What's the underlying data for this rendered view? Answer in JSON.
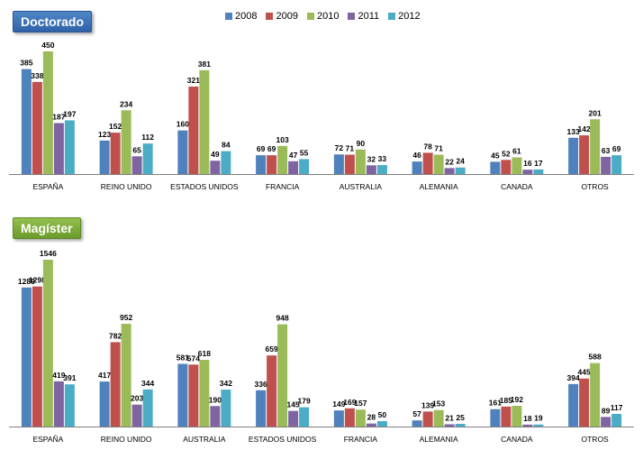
{
  "colors": {
    "s2008": "#4f81bd",
    "s2009": "#c0504d",
    "s2010": "#9bbb59",
    "s2011": "#8064a2",
    "s2012": "#4bacc6",
    "axis": "#808080",
    "text": "#000000"
  },
  "legend": [
    "2008",
    "2009",
    "2010",
    "2011",
    "2012"
  ],
  "chart_data": [
    {
      "type": "bar",
      "title": "Doctorado",
      "categories": [
        "ESPAÑA",
        "REINO UNIDO",
        "ESTADOS UNIDOS",
        "FRANCIA",
        "AUSTRALIA",
        "ALEMANIA",
        "CANADA",
        "OTROS"
      ],
      "series": [
        {
          "name": "2008",
          "values": [
            385,
            123,
            160,
            69,
            72,
            46,
            45,
            133
          ]
        },
        {
          "name": "2009",
          "values": [
            338,
            152,
            321,
            69,
            71,
            78,
            52,
            142
          ]
        },
        {
          "name": "2010",
          "values": [
            450,
            234,
            381,
            103,
            90,
            71,
            61,
            201
          ]
        },
        {
          "name": "2011",
          "values": [
            187,
            65,
            49,
            47,
            32,
            22,
            16,
            63
          ]
        },
        {
          "name": "2012",
          "values": [
            197,
            112,
            84,
            55,
            33,
            24,
            17,
            69
          ]
        }
      ],
      "ylim": [
        0,
        450
      ],
      "xlabel": "",
      "ylabel": ""
    },
    {
      "type": "bar",
      "title": "Magíster",
      "categories": [
        "ESPAÑA",
        "REINO UNIDO",
        "AUSTRALIA",
        "ESTADOS UNIDOS",
        "FRANCIA",
        "ALEMANIA",
        "CANADA",
        "OTROS"
      ],
      "series": [
        {
          "name": "2008",
          "values": [
            1289,
            417,
            581,
            336,
            149,
            57,
            161,
            394
          ]
        },
        {
          "name": "2009",
          "values": [
            1298,
            782,
            574,
            659,
            169,
            139,
            185,
            445
          ]
        },
        {
          "name": "2010",
          "values": [
            1546,
            952,
            618,
            948,
            157,
            153,
            192,
            588
          ]
        },
        {
          "name": "2011",
          "values": [
            419,
            203,
            190,
            145,
            28,
            21,
            18,
            89
          ]
        },
        {
          "name": "2012",
          "values": [
            391,
            344,
            342,
            179,
            50,
            25,
            19,
            117
          ]
        }
      ],
      "ylim": [
        0,
        1546
      ],
      "xlabel": "",
      "ylabel": ""
    }
  ]
}
